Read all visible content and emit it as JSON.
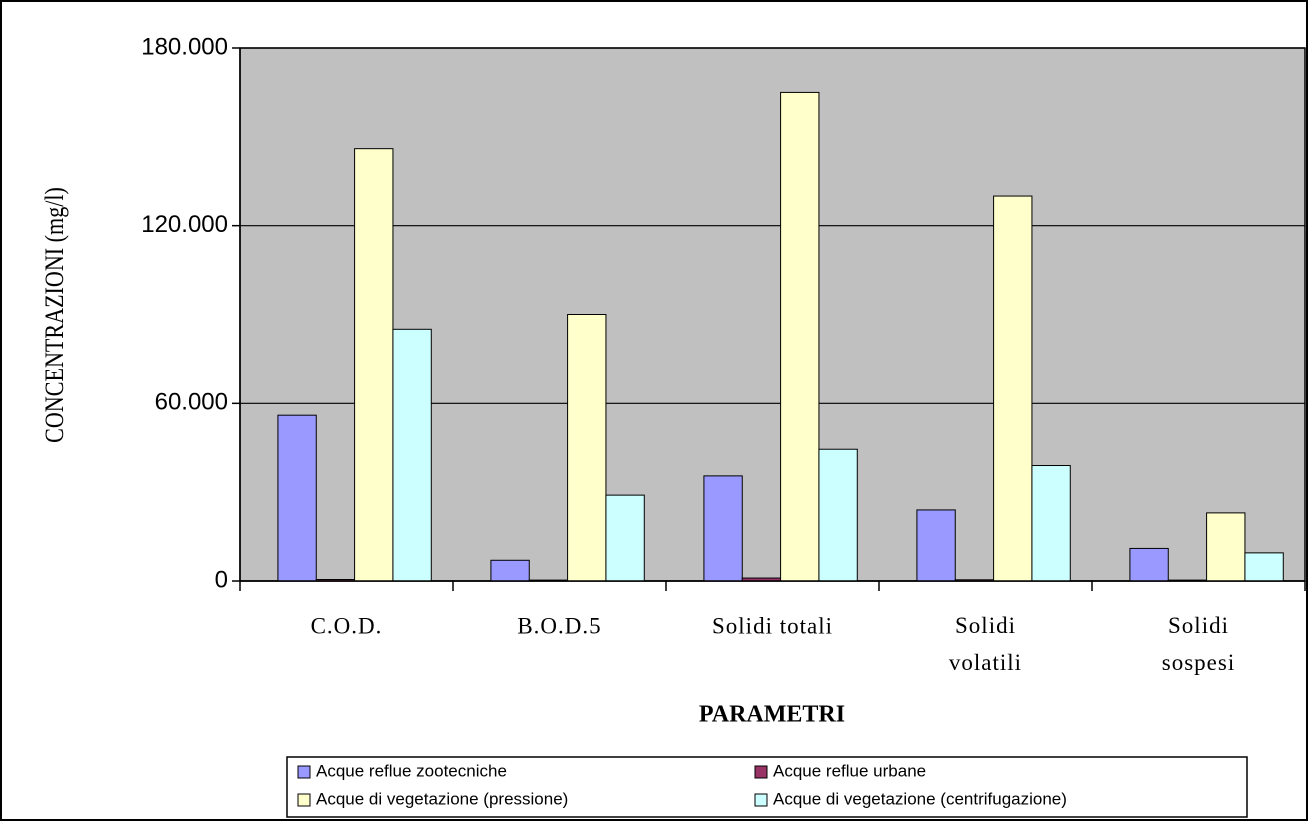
{
  "chart_data": {
    "type": "bar",
    "y_label": "CONCENTRAZIONI (mg/l)",
    "x_label": "PARAMETRI",
    "categories": [
      "C.O.D.",
      "B.O.D.5",
      "Solidi totali",
      "Solidi volatili",
      "Solidi sospesi"
    ],
    "series": [
      {
        "name": "Acque reflue zootecniche",
        "color": "#9999ff",
        "values": [
          56000,
          7000,
          35500,
          24000,
          11000
        ]
      },
      {
        "name": "Acque reflue urbane",
        "color": "#993366",
        "values": [
          500,
          300,
          1000,
          400,
          300
        ]
      },
      {
        "name": "Acque di vegetazione (pressione)",
        "color": "#ffffcc",
        "values": [
          146000,
          90000,
          165000,
          130000,
          23000
        ]
      },
      {
        "name": "Acque di vegetazione (centrifugazione)",
        "color": "#ccffff",
        "values": [
          85000,
          29000,
          44500,
          39000,
          9500
        ]
      }
    ],
    "ylim": [
      0,
      180000
    ],
    "yticks": [
      0,
      {
        "value": 60000,
        "label": "60.000"
      },
      {
        "value": 120000,
        "label": "120.000"
      },
      {
        "value": 180000,
        "label": "180.000"
      }
    ],
    "grid": true,
    "plot_background": "#c0c0c0",
    "legend": "bottom"
  }
}
